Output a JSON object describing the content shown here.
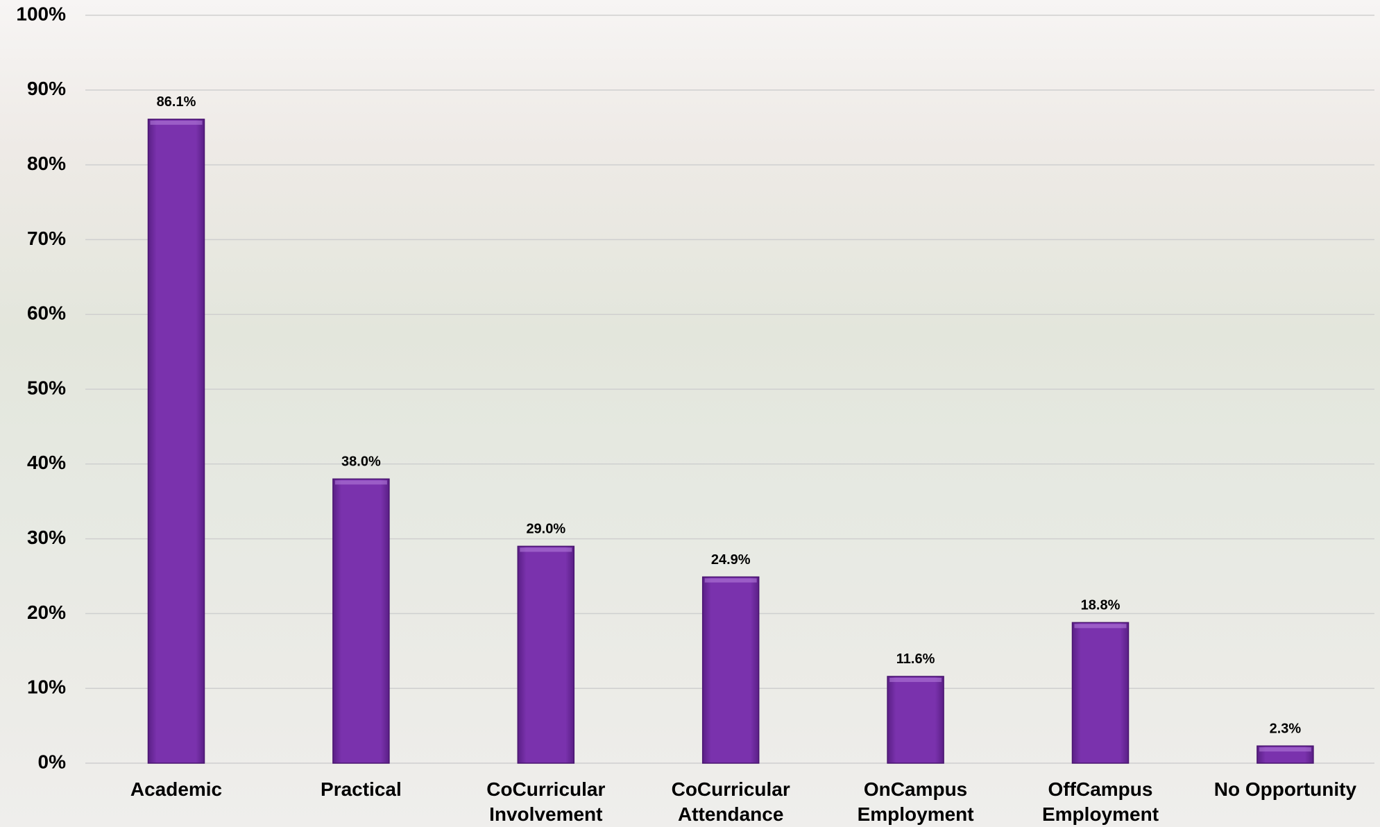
{
  "chart_data": {
    "type": "bar",
    "categories": [
      "Academic",
      "Practical",
      "CoCurricular Involvement",
      "CoCurricular Attendance",
      "OnCampus Employment",
      "OffCampus Employment",
      "No Opportunity"
    ],
    "values": [
      86.1,
      38.0,
      29.0,
      24.9,
      11.6,
      18.8,
      2.3
    ],
    "value_labels": [
      "86.1%",
      "38.0%",
      "29.0%",
      "24.9%",
      "11.6%",
      "18.8%",
      "2.3%"
    ],
    "color": "#7a32ad",
    "ylim": [
      0,
      100
    ],
    "yticks": [
      {
        "value": 0,
        "label": "0%"
      },
      {
        "value": 10,
        "label": "10%"
      },
      {
        "value": 20,
        "label": "20%"
      },
      {
        "value": 30,
        "label": "30%"
      },
      {
        "value": 40,
        "label": "40%"
      },
      {
        "value": 50,
        "label": "50%"
      },
      {
        "value": 60,
        "label": "60%"
      },
      {
        "value": 70,
        "label": "70%"
      },
      {
        "value": 80,
        "label": "80%"
      },
      {
        "value": 90,
        "label": "90%"
      },
      {
        "value": 100,
        "label": "100%"
      }
    ],
    "grid": true
  }
}
